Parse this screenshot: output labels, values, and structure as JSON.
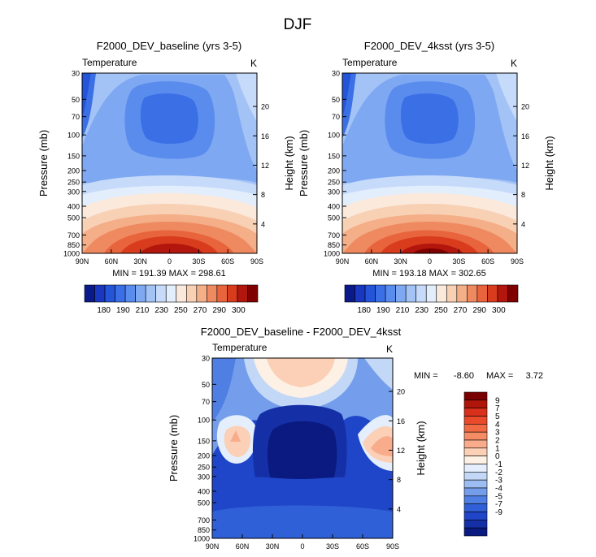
{
  "figure": {
    "title": "DJF"
  },
  "chart_data": [
    {
      "type": "contour",
      "title": "F2000_DEV_baseline (yrs 3-5)",
      "variable": "Temperature",
      "units": "K",
      "xlabel": "",
      "ylabel": "Pressure (mb)",
      "ylabel_right": "Height (km)",
      "x_ticks": [
        "90N",
        "60N",
        "30N",
        "0",
        "30S",
        "60S",
        "90S"
      ],
      "y_ticks": [
        "30",
        "50",
        "70",
        "100",
        "150",
        "200",
        "250",
        "300",
        "400",
        "500",
        "700",
        "850",
        "1000"
      ],
      "y_ticks_right": [
        "20",
        "16",
        "12",
        "8",
        "4"
      ],
      "stats": "MIN = 191.39   MAX = 298.61",
      "min": 191.39,
      "max": 298.61,
      "colorbar_labels": [
        "180",
        "190",
        "210",
        "230",
        "250",
        "270",
        "290",
        "300"
      ],
      "colorbar_colors": [
        "#0b1a8a",
        "#1a37c2",
        "#2454d8",
        "#3a6fe6",
        "#5a8cee",
        "#7ea8f2",
        "#a3c3f6",
        "#c6dafa",
        "#e3eefc",
        "#fbe9dc",
        "#f8d0b4",
        "#f4ae88",
        "#ef8a60",
        "#e8643d",
        "#d83c1d",
        "#b2160c",
        "#800000"
      ]
    },
    {
      "type": "contour",
      "title": "F2000_DEV_4ksst (yrs 3-5)",
      "variable": "Temperature",
      "units": "K",
      "xlabel": "",
      "ylabel": "Pressure (mb)",
      "ylabel_right": "Height (km)",
      "x_ticks": [
        "90N",
        "60N",
        "30N",
        "0",
        "30S",
        "60S",
        "90S"
      ],
      "y_ticks": [
        "30",
        "50",
        "70",
        "100",
        "150",
        "200",
        "250",
        "300",
        "400",
        "500",
        "700",
        "850",
        "1000"
      ],
      "y_ticks_right": [
        "20",
        "16",
        "12",
        "8",
        "4"
      ],
      "stats": "MIN = 193.18   MAX = 302.65",
      "min": 193.18,
      "max": 302.65,
      "colorbar_labels": [
        "180",
        "190",
        "210",
        "230",
        "250",
        "270",
        "290",
        "300"
      ],
      "colorbar_colors": [
        "#0b1a8a",
        "#1a37c2",
        "#2454d8",
        "#3a6fe6",
        "#5a8cee",
        "#7ea8f2",
        "#a3c3f6",
        "#c6dafa",
        "#e3eefc",
        "#fbe9dc",
        "#f8d0b4",
        "#f4ae88",
        "#ef8a60",
        "#e8643d",
        "#d83c1d",
        "#b2160c",
        "#800000"
      ]
    },
    {
      "type": "contour",
      "title": "F2000_DEV_baseline - F2000_DEV_4ksst",
      "variable": "Temperature",
      "units": "K",
      "xlabel": "",
      "ylabel": "Pressure (mb)",
      "ylabel_right": "Height (km)",
      "x_ticks": [
        "90N",
        "60N",
        "30N",
        "0",
        "30S",
        "60S",
        "90S"
      ],
      "y_ticks": [
        "30",
        "50",
        "70",
        "100",
        "150",
        "200",
        "250",
        "300",
        "400",
        "500",
        "700",
        "850",
        "1000"
      ],
      "y_ticks_right": [
        "20",
        "16",
        "12",
        "8",
        "4"
      ],
      "min_label": "MIN =",
      "min_value": "-8.60",
      "max_label": "MAX =",
      "max_value": "3.72",
      "min": -8.6,
      "max": 3.72,
      "colorbar_labels": [
        "9",
        "7",
        "5",
        "4",
        "3",
        "2",
        "1",
        "0",
        "-1",
        "-2",
        "-3",
        "-4",
        "-5",
        "-7",
        "-9"
      ],
      "colorbar_colors": [
        "#7a0000",
        "#b0150a",
        "#d8301a",
        "#ea4a2a",
        "#f26a44",
        "#f68c64",
        "#f8ac8c",
        "#fbd0b6",
        "#fdf0e4",
        "#e4eefc",
        "#c3d8f7",
        "#9cbdf2",
        "#749eeb",
        "#4f7fe3",
        "#3060d8",
        "#1f45c8",
        "#1530a6",
        "#0a1a80"
      ]
    }
  ]
}
